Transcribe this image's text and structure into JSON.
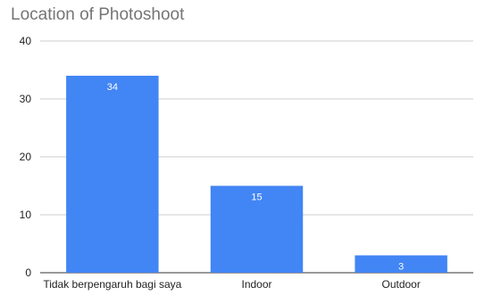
{
  "chart_data": {
    "type": "bar",
    "title": "Location of Photoshoot",
    "xlabel": "",
    "ylabel": "",
    "categories": [
      "Tidak berpengaruh bagi saya",
      "Indoor",
      "Outdoor"
    ],
    "values": [
      34,
      15,
      3
    ],
    "data_labels": [
      "34",
      "15",
      "3"
    ],
    "ylim": [
      0,
      40
    ],
    "yticks": [
      0,
      10,
      20,
      30,
      40
    ],
    "ytick_labels": [
      "0",
      "10",
      "20",
      "30",
      "40"
    ],
    "grid": true,
    "legend": "none",
    "bar_color": "#4285f4",
    "label_color": "#ffffff"
  }
}
